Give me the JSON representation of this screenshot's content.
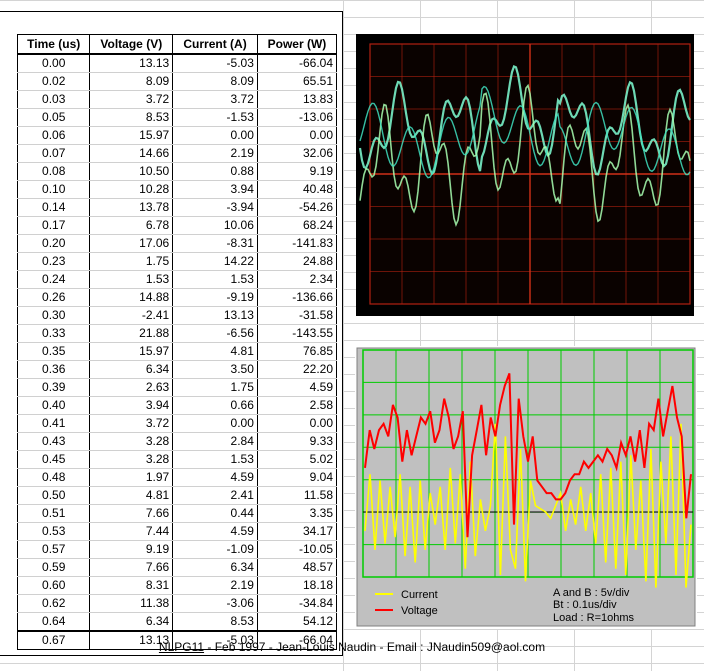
{
  "table": {
    "headers": [
      "Time (us)",
      "Voltage (V)",
      "Current (A)",
      "Power (W)"
    ],
    "rows": [
      [
        "0.00",
        "13.13",
        "-5.03",
        "-66.04"
      ],
      [
        "0.02",
        "8.09",
        "8.09",
        "65.51"
      ],
      [
        "0.03",
        "3.72",
        "3.72",
        "13.83"
      ],
      [
        "0.05",
        "8.53",
        "-1.53",
        "-13.06"
      ],
      [
        "0.06",
        "15.97",
        "0.00",
        "0.00"
      ],
      [
        "0.07",
        "14.66",
        "2.19",
        "32.06"
      ],
      [
        "0.08",
        "10.50",
        "0.88",
        "9.19"
      ],
      [
        "0.10",
        "10.28",
        "3.94",
        "40.48"
      ],
      [
        "0.14",
        "13.78",
        "-3.94",
        "-54.26"
      ],
      [
        "0.17",
        "6.78",
        "10.06",
        "68.24"
      ],
      [
        "0.20",
        "17.06",
        "-8.31",
        "-141.83"
      ],
      [
        "0.23",
        "1.75",
        "14.22",
        "24.88"
      ],
      [
        "0.24",
        "1.53",
        "1.53",
        "2.34"
      ],
      [
        "0.26",
        "14.88",
        "-9.19",
        "-136.66"
      ],
      [
        "0.30",
        "-2.41",
        "13.13",
        "-31.58"
      ],
      [
        "0.33",
        "21.88",
        "-6.56",
        "-143.55"
      ],
      [
        "0.35",
        "15.97",
        "4.81",
        "76.85"
      ],
      [
        "0.36",
        "6.34",
        "3.50",
        "22.20"
      ],
      [
        "0.39",
        "2.63",
        "1.75",
        "4.59"
      ],
      [
        "0.40",
        "3.94",
        "0.66",
        "2.58"
      ],
      [
        "0.41",
        "3.72",
        "0.00",
        "0.00"
      ],
      [
        "0.43",
        "3.28",
        "2.84",
        "9.33"
      ],
      [
        "0.45",
        "3.28",
        "1.53",
        "5.02"
      ],
      [
        "0.48",
        "1.97",
        "4.59",
        "9.04"
      ],
      [
        "0.50",
        "4.81",
        "2.41",
        "11.58"
      ],
      [
        "0.51",
        "7.66",
        "0.44",
        "3.35"
      ],
      [
        "0.53",
        "7.44",
        "4.59",
        "34.17"
      ],
      [
        "0.57",
        "9.19",
        "-1.09",
        "-10.05"
      ],
      [
        "0.59",
        "7.66",
        "6.34",
        "48.57"
      ],
      [
        "0.60",
        "8.31",
        "2.19",
        "18.18"
      ],
      [
        "0.62",
        "11.38",
        "-3.06",
        "-34.84"
      ],
      [
        "0.64",
        "6.34",
        "8.53",
        "54.12"
      ]
    ],
    "last_row": [
      "0.67",
      "13.13",
      "-5.03",
      "-66.04"
    ]
  },
  "chart_data": {
    "type": "line",
    "series": [
      {
        "name": "Current",
        "color": "#ffff00",
        "values": [
          -3,
          6,
          -6,
          5,
          -5,
          4,
          -4,
          6,
          -7,
          4,
          -8,
          5,
          -6,
          3,
          -2,
          4,
          -6,
          7,
          -5,
          6,
          -9,
          8,
          -7,
          2,
          -3,
          1,
          14,
          -10,
          12,
          -6,
          -9,
          10,
          -11,
          5,
          1,
          0.5,
          0,
          -1,
          1,
          3,
          -3,
          2,
          -2,
          4,
          -3,
          3,
          -5,
          6,
          -8,
          7,
          -9,
          8,
          -10,
          9,
          -6,
          5,
          -11,
          10,
          -12,
          8,
          -5,
          12,
          -10,
          14,
          -12,
          -2
        ]
      },
      {
        "name": "Voltage",
        "color": "#ff0000",
        "values": [
          7,
          13,
          10,
          13,
          14,
          12,
          17,
          15,
          8,
          13,
          9,
          12,
          15,
          14,
          16,
          11,
          13,
          18,
          15,
          10,
          12,
          16,
          -4,
          9,
          13,
          17,
          9,
          15,
          12,
          17,
          20,
          22,
          -2,
          18,
          12,
          8,
          12,
          5,
          4,
          3,
          3,
          2,
          2,
          3,
          5,
          6,
          6,
          8,
          7,
          8,
          9,
          8,
          10,
          9,
          7,
          11,
          9,
          12,
          8,
          13,
          7,
          14,
          13,
          18,
          12,
          16,
          20,
          15,
          12,
          -1,
          6
        ]
      }
    ],
    "annotations": [
      "A and B : 5v/div",
      "Bt : 0.1us/div",
      "Load : R=1ohms"
    ],
    "grid": true,
    "legend_position": "bottom-left"
  },
  "footer": {
    "link": "NLPG11",
    "text": " - Feb 1997 - Jean-Louis Naudin - Email : JNaudin509@aol.com"
  },
  "colors": {
    "plot_bg": "#c0c0c0",
    "plot_grid": "#00cc00",
    "scope_grid": "#b02010",
    "scope_trace": "#7fffd4"
  }
}
